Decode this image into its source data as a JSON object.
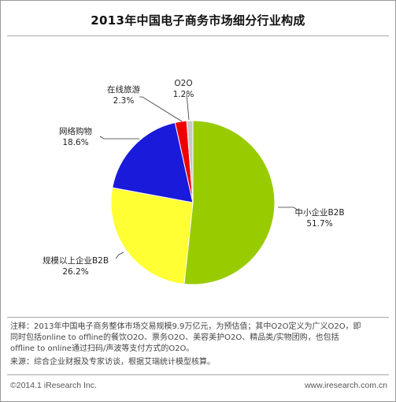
{
  "chart_data": {
    "type": "pie",
    "title": "2013年中国电子商务市场细分行业构成",
    "slices": [
      {
        "label": "中小企业B2B",
        "value_label": "51.7%",
        "value": 51.7,
        "color": "#99cc00"
      },
      {
        "label": "规模以上企业B2B",
        "value_label": "26.2%",
        "value": 26.2,
        "color": "#ffff33"
      },
      {
        "label": "网络购物",
        "value_label": "18.6%",
        "value": 18.6,
        "color": "#1a1adb"
      },
      {
        "label": "在线旅游",
        "value_label": "2.3%",
        "value": 2.3,
        "color": "#ee0000"
      },
      {
        "label": "O2O",
        "value_label": "1.2%",
        "value": 1.2,
        "color": "#c8c8c8"
      }
    ]
  },
  "notes": {
    "line1": "注释：2013年中国电子商务整体市场交易规模9.9万亿元，为预估值；其中O2O定义为广义O2O，即",
    "line2": "同时包括online to offline的餐饮O2O、票务O2O、美容美护O2O、精品类/实物团购，也包括",
    "line3": "offline to online通过扫码/声波等支付方式的O2O。",
    "line4": "来源：综合企业财报及专家访谈，根据艾瑞统计模型核算。"
  },
  "footer": {
    "copyright": "©2014.1 iResearch Inc.",
    "website": "www.iresearch.com.cn"
  }
}
